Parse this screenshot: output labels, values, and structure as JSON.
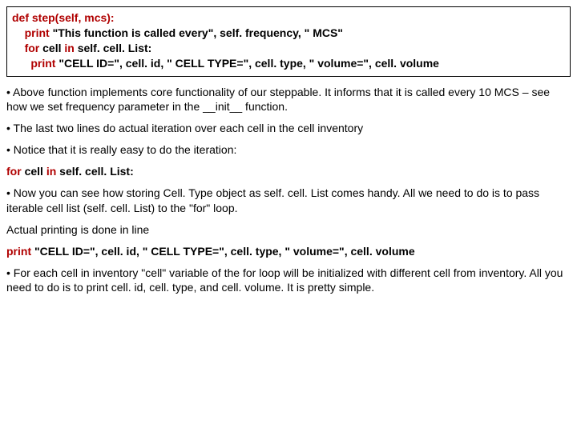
{
  "code": {
    "l1a": "def step(self, mcs):",
    "l2a": "print ",
    "l2b": "\"This function is called every\", self. frequency, \" MCS\"",
    "l3a": "for ",
    "l3b": "cell ",
    "l3c": "in ",
    "l3d": "self. cell. List:",
    "l4a": "print ",
    "l4b": "\"CELL ID=\", cell. id, \" CELL TYPE=\", cell. type, \" volume=\", cell. volume"
  },
  "p1": "• Above function implements core functionality of our steppable. It informs that it is called every 10 MCS – see how we set frequency parameter in  the __init__ function.",
  "p2": "• The last two lines do actual iteration over each cell in the cell inventory",
  "p3": "• Notice that it is really easy to do the iteration:",
  "forline": {
    "a": "for ",
    "b": "cell ",
    "c": "in ",
    "d": "self. cell. List:"
  },
  "p4": "• Now you can see how storing Cell. Type object as self. cell. List comes handy. All we need to do is to pass iterable cell list (self. cell. List) to the \"for\" loop.",
  "p5": "Actual printing is done in line",
  "printline": {
    "a": "print ",
    "b": "\"CELL ID=\", cell. id, \" CELL TYPE=\", cell. type, \" volume=\", cell. volume"
  },
  "p6": "• For each cell in inventory \"cell\" variable of the for loop will be initialized with different cell from inventory. All you need to do is to print cell. id, cell. type, and cell. volume. It is pretty simple."
}
